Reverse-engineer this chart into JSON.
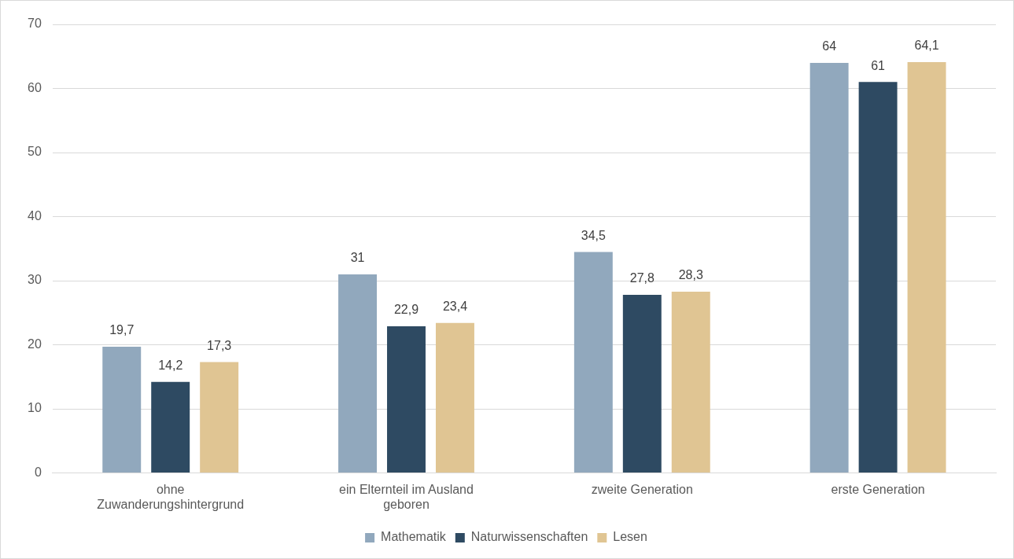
{
  "chart_data": {
    "type": "bar",
    "categories": [
      "ohne Zuwanderungshintergrund",
      "ein Elternteil im Ausland geboren",
      "zweite Generation",
      "erste Generation"
    ],
    "series": [
      {
        "name": "Mathematik",
        "color": "#91a8bd",
        "values": [
          19.7,
          31,
          34.5,
          64
        ],
        "value_labels": [
          "19,7",
          "31",
          "34,5",
          "64"
        ]
      },
      {
        "name": "Naturwissenschaften",
        "color": "#2e4a62",
        "values": [
          14.2,
          22.9,
          27.8,
          61
        ],
        "value_labels": [
          "14,2",
          "22,9",
          "27,8",
          "61"
        ]
      },
      {
        "name": "Lesen",
        "color": "#e0c593",
        "values": [
          17.3,
          23.4,
          28.3,
          64.1
        ],
        "value_labels": [
          "17,3",
          "23,4",
          "28,3",
          "64,1"
        ]
      }
    ],
    "ylim": [
      0,
      70
    ],
    "yticks": [
      0,
      10,
      20,
      30,
      40,
      50,
      60,
      70
    ],
    "grid": "y",
    "legend": "bottom"
  }
}
